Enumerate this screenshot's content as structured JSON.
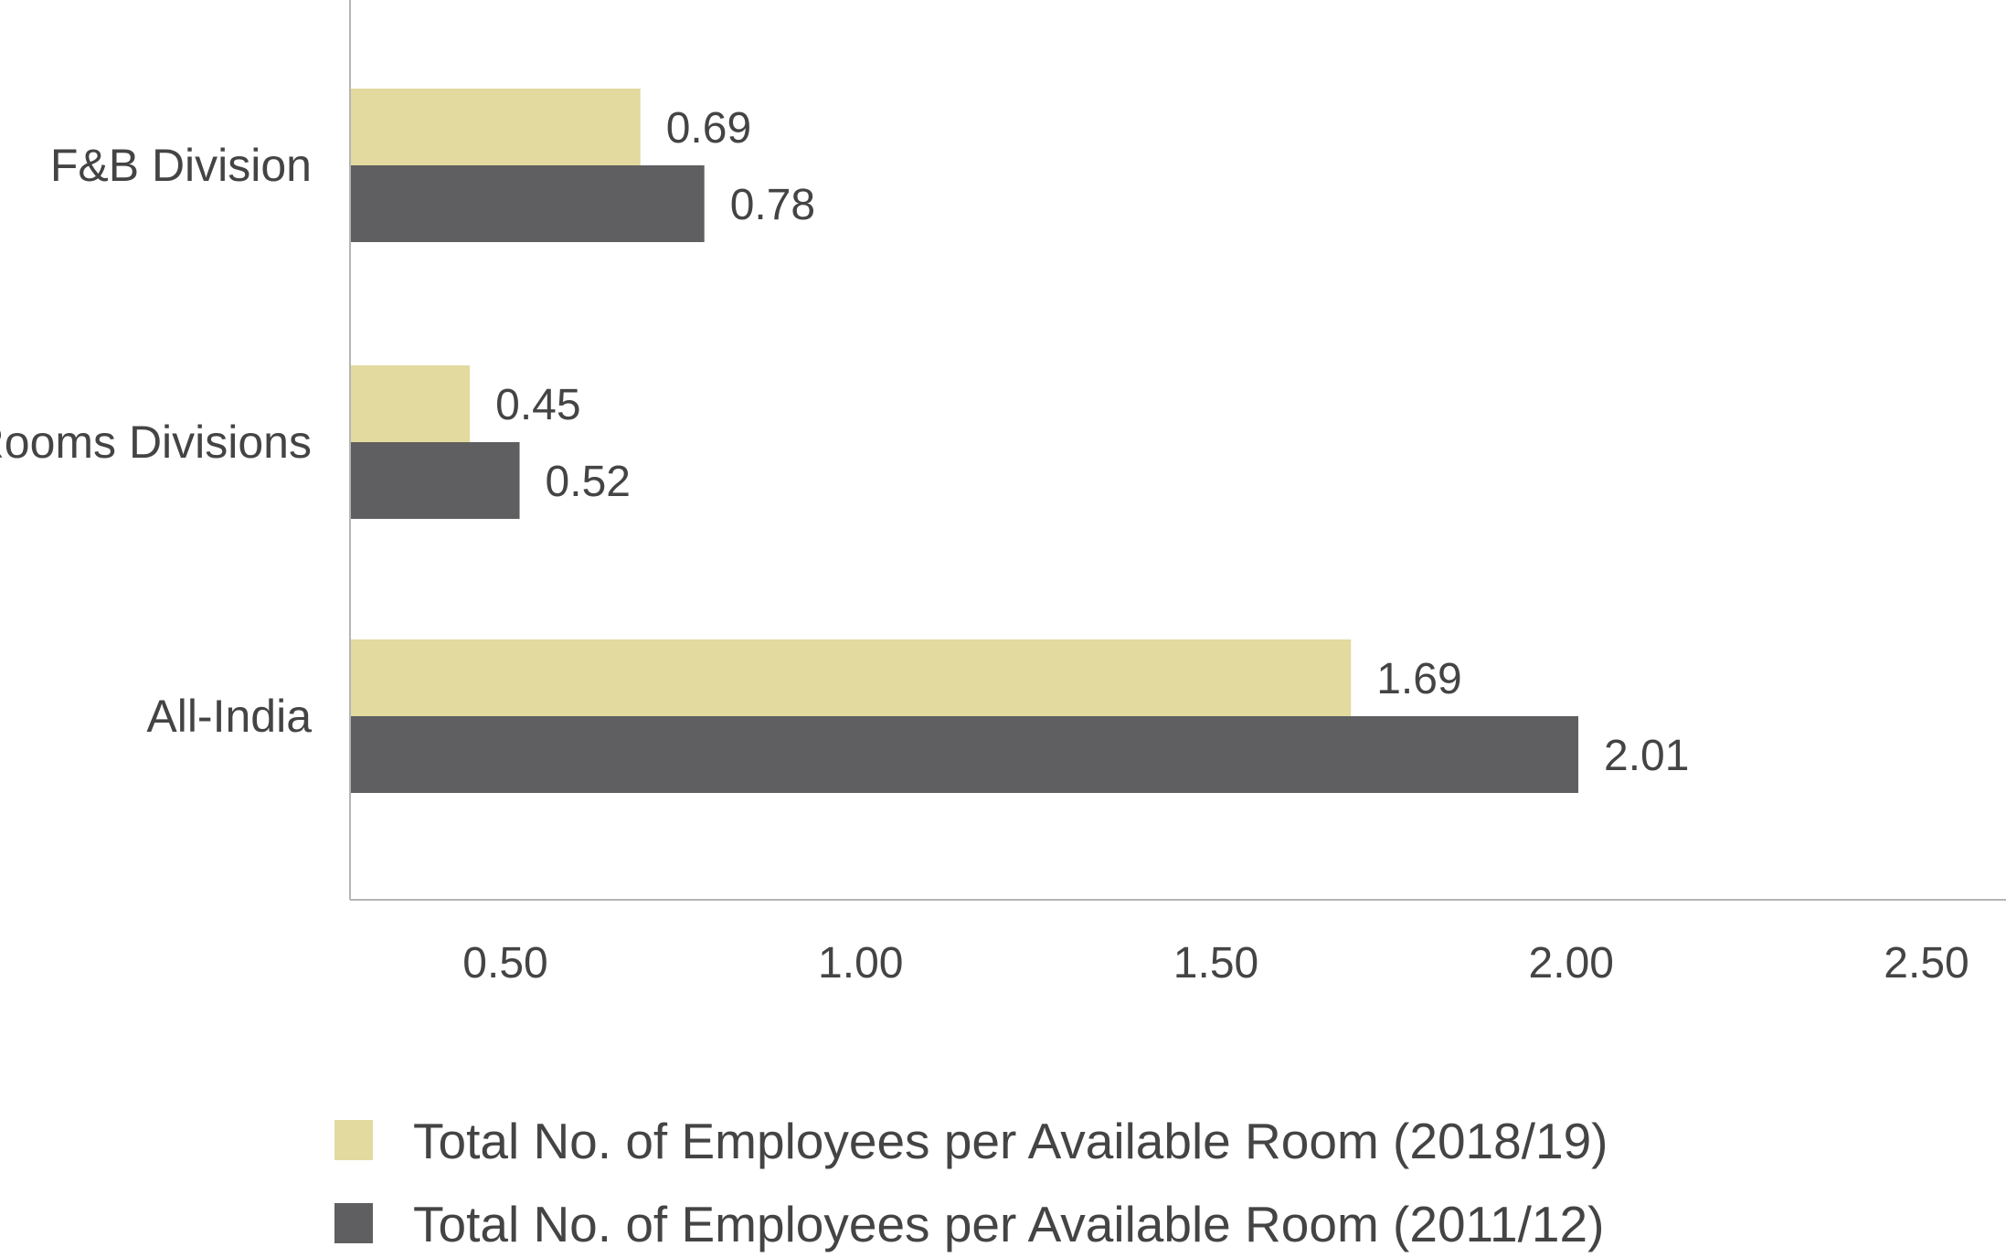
{
  "colors": {
    "series_2018_19": "#e2da9e",
    "series_2011_12": "#5f5f61",
    "text": "#444444",
    "axis": "#b5b5b5"
  },
  "chart_data": {
    "type": "bar",
    "orientation": "horizontal",
    "title": "",
    "xlabel": "",
    "ylabel": "",
    "categories": [
      "F&B Division",
      "Rooms Divisions",
      "All-India"
    ],
    "series": [
      {
        "name": "Total No. of Employees per Available Room (2018/19)",
        "values": [
          0.69,
          0.45,
          1.69
        ],
        "labels": [
          "0.69",
          "0.45",
          "1.69"
        ]
      },
      {
        "name": "Total No. of Employees per Available Room (2011/12)",
        "values": [
          0.78,
          0.52,
          2.01
        ],
        "labels": [
          "0.78",
          "0.52",
          "2.01"
        ]
      }
    ],
    "x_ticks": [
      0.5,
      1.0,
      1.5,
      2.0,
      2.5
    ],
    "x_tick_labels": [
      "0.50",
      "1.00",
      "1.50",
      "2.00",
      "2.50"
    ],
    "xlim": [
      0,
      2.5
    ],
    "grid": false,
    "legend_position": "bottom"
  }
}
